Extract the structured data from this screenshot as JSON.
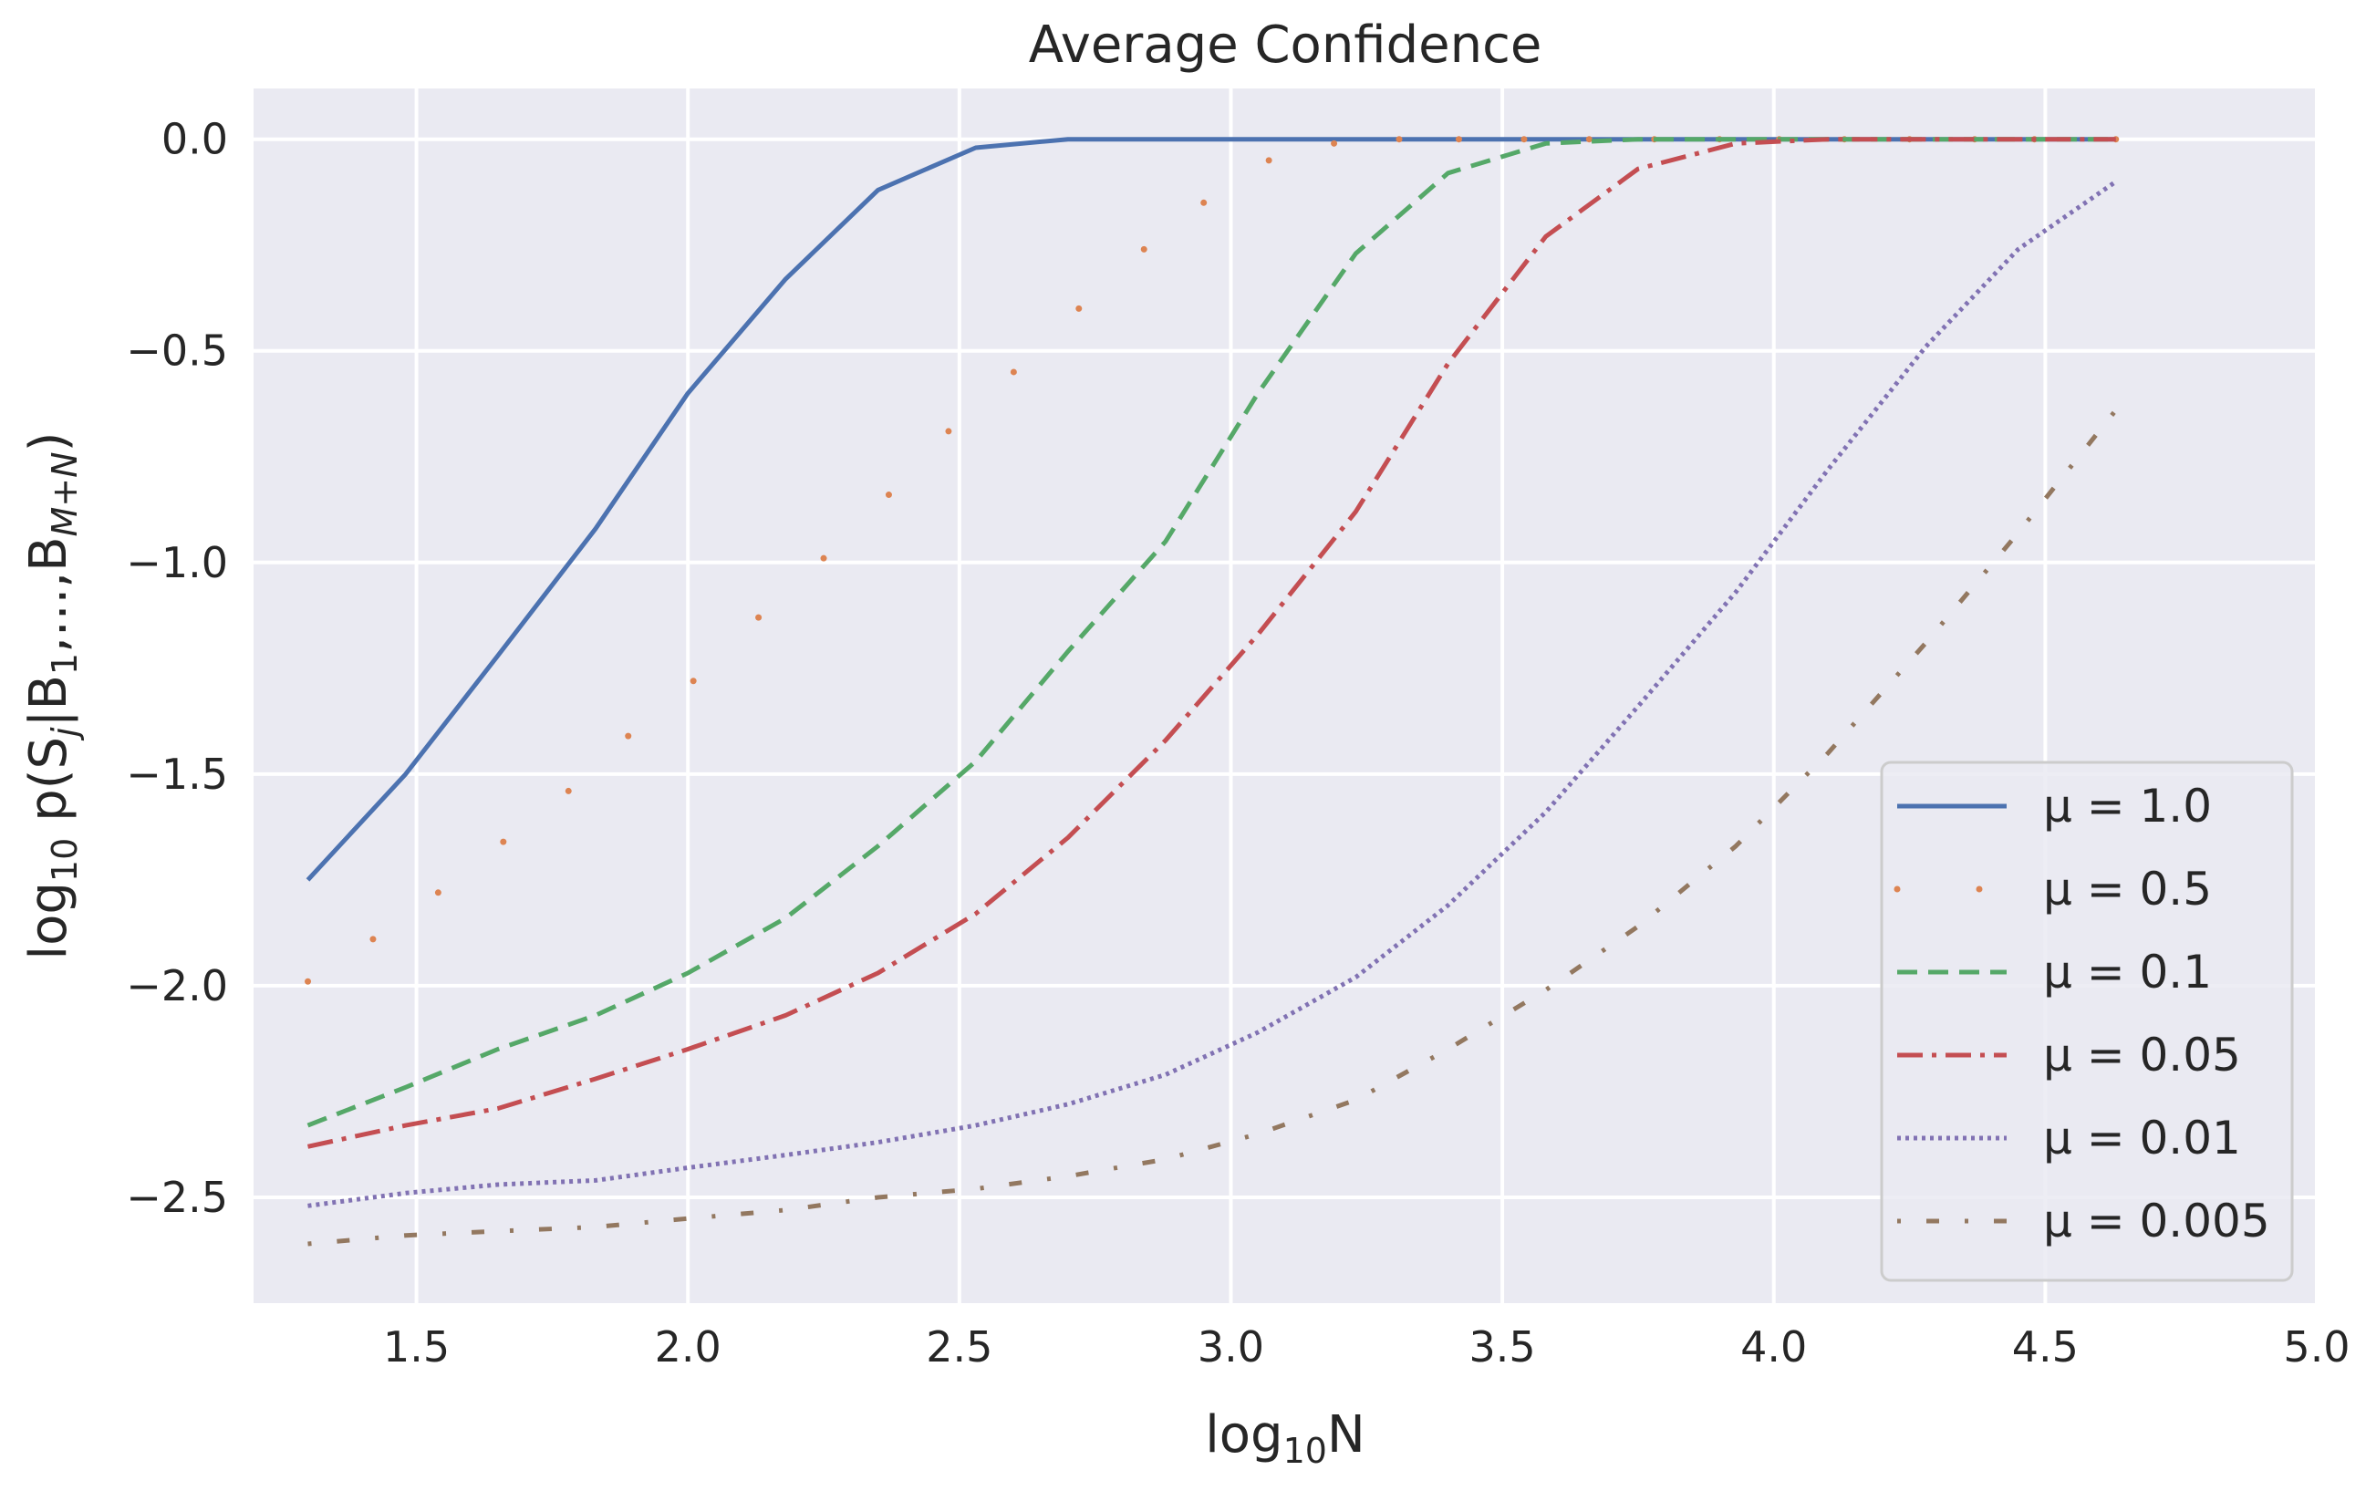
{
  "chart_data": {
    "type": "line",
    "title": "Average Confidence",
    "xlabel": "log10N",
    "ylabel": "log10 p(Sj|B1,...,BM+N)",
    "xlim": [
      1.2,
      5.0
    ],
    "ylim": [
      -2.75,
      0.12
    ],
    "x_ticks": [
      1.5,
      2.0,
      2.5,
      3.0,
      3.5,
      4.0,
      4.5,
      5.0
    ],
    "y_ticks": [
      0.0,
      -0.5,
      -1.0,
      -1.5,
      -2.0,
      -2.5
    ],
    "x_tick_labels": [
      "1.5",
      "2.0",
      "2.5",
      "3.0",
      "3.5",
      "4.0",
      "4.5",
      "5.0"
    ],
    "y_tick_labels": [
      "0.0",
      "−0.5",
      "−1.0",
      "−1.5",
      "−2.0",
      "−2.5"
    ],
    "grid": true,
    "legend_position": "lower-right",
    "series": [
      {
        "name": "μ = 1.0",
        "color": "#4c72b0",
        "style": "solid",
        "x": [
          1.3,
          1.48,
          1.65,
          1.83,
          2.0,
          2.18,
          2.35,
          2.53,
          2.7,
          2.88,
          3.05,
          3.23,
          3.4,
          3.58,
          3.75,
          3.93,
          4.1,
          4.28,
          4.45,
          4.63
        ],
        "y": [
          -1.75,
          -1.5,
          -1.22,
          -0.92,
          -0.6,
          -0.33,
          -0.12,
          -0.02,
          0.0,
          0.0,
          0.0,
          0.0,
          0.0,
          0.0,
          0.0,
          0.0,
          0.0,
          0.0,
          0.0,
          0.0
        ]
      },
      {
        "name": "μ = 0.5",
        "color": "#dd8452",
        "style": "sparse-dot",
        "x": [
          1.3,
          1.42,
          1.54,
          1.66,
          1.78,
          1.89,
          2.01,
          2.13,
          2.25,
          2.37,
          2.48,
          2.6,
          2.72,
          2.84,
          2.95,
          3.07,
          3.19,
          3.31,
          3.42,
          3.54,
          3.66,
          3.78,
          3.9,
          4.01,
          4.13,
          4.25,
          4.37,
          4.48,
          4.63
        ],
        "y": [
          -1.99,
          -1.89,
          -1.78,
          -1.66,
          -1.54,
          -1.41,
          -1.28,
          -1.13,
          -0.99,
          -0.84,
          -0.69,
          -0.55,
          -0.4,
          -0.26,
          -0.15,
          -0.05,
          -0.01,
          0.0,
          0.0,
          0.0,
          0.0,
          0.0,
          0.0,
          0.0,
          0.0,
          0.0,
          0.0,
          0.0,
          0.0
        ]
      },
      {
        "name": "μ = 0.1",
        "color": "#55a868",
        "style": "dashed",
        "x": [
          1.3,
          1.48,
          1.65,
          1.83,
          2.0,
          2.18,
          2.35,
          2.53,
          2.7,
          2.88,
          3.05,
          3.23,
          3.4,
          3.58,
          3.75,
          3.93,
          4.1,
          4.28,
          4.45,
          4.63
        ],
        "y": [
          -2.33,
          -2.24,
          -2.15,
          -2.07,
          -1.97,
          -1.84,
          -1.67,
          -1.47,
          -1.21,
          -0.95,
          -0.6,
          -0.27,
          -0.08,
          -0.01,
          0.0,
          0.0,
          0.0,
          0.0,
          0.0,
          0.0
        ]
      },
      {
        "name": "μ = 0.05",
        "color": "#c44e52",
        "style": "dashdot",
        "x": [
          1.3,
          1.48,
          1.65,
          1.83,
          2.0,
          2.18,
          2.35,
          2.53,
          2.7,
          2.88,
          3.05,
          3.23,
          3.4,
          3.58,
          3.75,
          3.93,
          4.1,
          4.28,
          4.45,
          4.63
        ],
        "y": [
          -2.38,
          -2.33,
          -2.29,
          -2.22,
          -2.15,
          -2.07,
          -1.97,
          -1.83,
          -1.65,
          -1.42,
          -1.17,
          -0.88,
          -0.53,
          -0.23,
          -0.07,
          -0.01,
          0.0,
          0.0,
          0.0,
          0.0
        ]
      },
      {
        "name": "μ = 0.01",
        "color": "#8172b3",
        "style": "dotted",
        "x": [
          1.3,
          1.48,
          1.65,
          1.83,
          2.0,
          2.18,
          2.35,
          2.53,
          2.7,
          2.88,
          3.05,
          3.23,
          3.4,
          3.58,
          3.75,
          3.93,
          4.1,
          4.28,
          4.45,
          4.63
        ],
        "y": [
          -2.52,
          -2.49,
          -2.47,
          -2.46,
          -2.43,
          -2.4,
          -2.37,
          -2.33,
          -2.28,
          -2.21,
          -2.11,
          -1.98,
          -1.81,
          -1.59,
          -1.34,
          -1.07,
          -0.78,
          -0.49,
          -0.26,
          -0.1
        ]
      },
      {
        "name": "μ = 0.005",
        "color": "#937860",
        "style": "loose-dashdot",
        "x": [
          1.3,
          1.48,
          1.65,
          1.83,
          2.0,
          2.18,
          2.35,
          2.53,
          2.7,
          2.88,
          3.05,
          3.23,
          3.4,
          3.58,
          3.75,
          3.93,
          4.1,
          4.28,
          4.45,
          4.63
        ],
        "y": [
          -2.61,
          -2.59,
          -2.58,
          -2.57,
          -2.55,
          -2.53,
          -2.5,
          -2.48,
          -2.45,
          -2.41,
          -2.35,
          -2.27,
          -2.15,
          -2.01,
          -1.86,
          -1.67,
          -1.45,
          -1.19,
          -0.93,
          -0.64
        ]
      }
    ]
  }
}
